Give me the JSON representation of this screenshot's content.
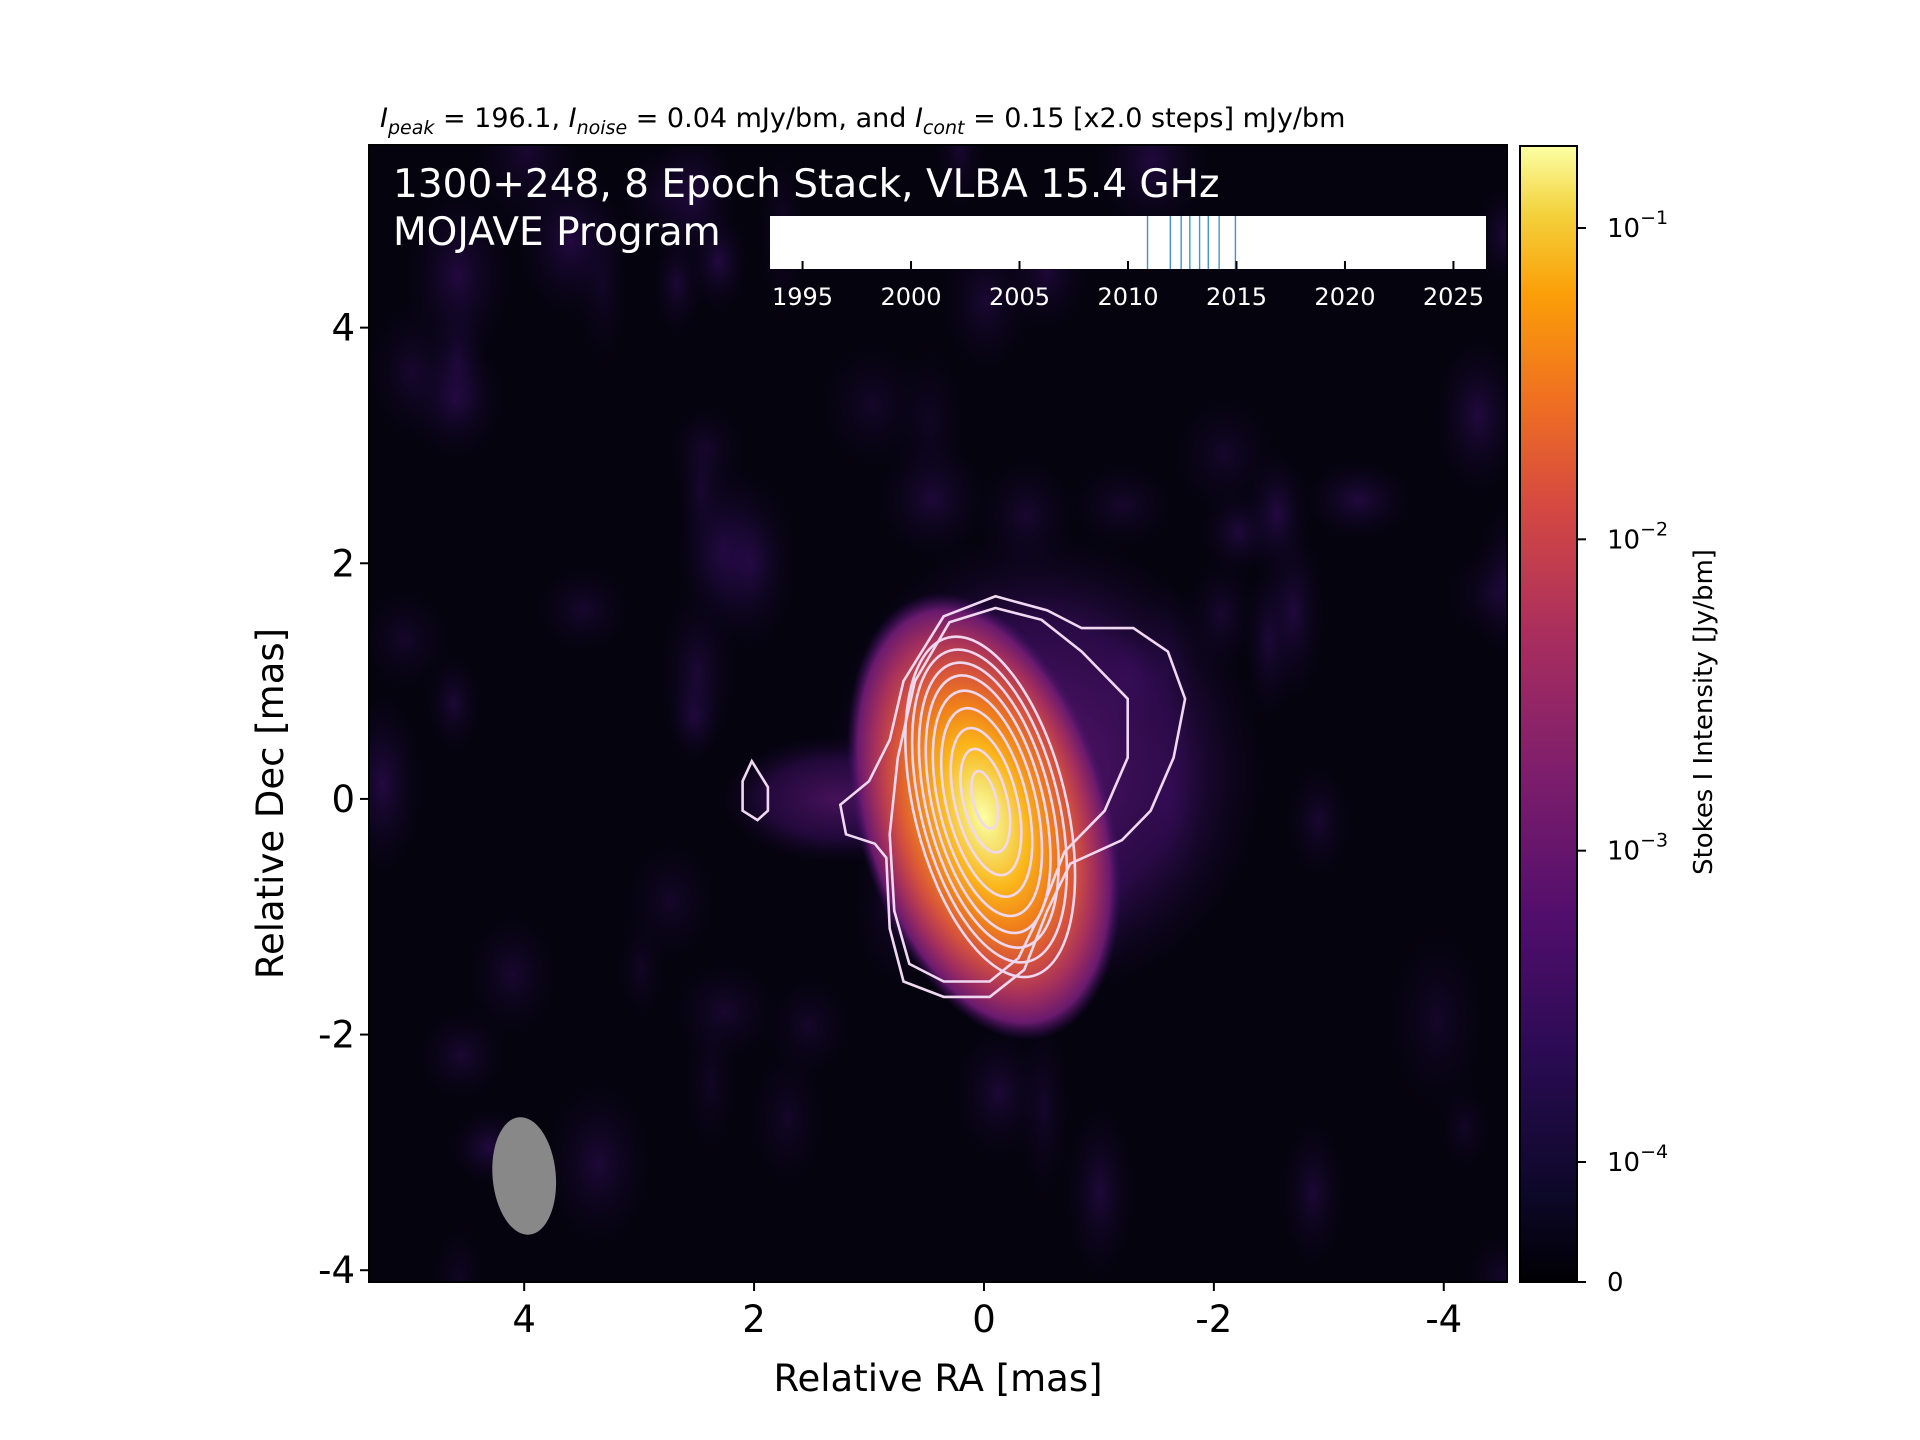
{
  "chart_data": {
    "type": "heatmap",
    "header": {
      "parts": [
        {
          "base": "I",
          "sub": "peak",
          "rest": " = 196.1, "
        },
        {
          "base": "I",
          "sub": "noise",
          "rest": " = 0.04 mJy/bm, and "
        },
        {
          "base": "I",
          "sub": "cont",
          "rest": " = 0.15 [x2.0 steps] mJy/bm"
        }
      ]
    },
    "title": "1300+248, 8 Epoch Stack, VLBA 15.4 GHz",
    "subtitle": "MOJAVE Program",
    "xlabel": "Relative RA [mas]",
    "ylabel": "Relative Dec [mas]",
    "xlim": [
      5.35,
      -4.55
    ],
    "ylim": [
      -4.1,
      5.55
    ],
    "x_ticks": [
      4,
      2,
      0,
      -2,
      -4
    ],
    "x_tick_labels": [
      "4",
      "2",
      "0",
      "-2",
      "-4"
    ],
    "y_ticks": [
      4,
      2,
      0,
      -2,
      -4
    ],
    "y_tick_labels": [
      "4",
      "2",
      "0",
      "-2",
      "-4"
    ],
    "x_reversed": true,
    "colormap": "inferno",
    "colorbar": {
      "label": "Stokes I Intensity [Jy/bm]",
      "ticks": [
        {
          "value": 0.1,
          "base": "10",
          "exp": "−1"
        },
        {
          "value": 0.01,
          "base": "10",
          "exp": "−2"
        },
        {
          "value": 0.001,
          "base": "10",
          "exp": "−3"
        },
        {
          "value": 0.0001,
          "base": "10",
          "exp": "−4"
        },
        {
          "value": 0,
          "base": "0",
          "exp": ""
        }
      ]
    },
    "source": {
      "peak_x": 0.0,
      "peak_y": 0.0,
      "peak_jy": 0.1961
    },
    "contour_color": "#f0d8f0",
    "contour_levels_mjy": [
      0.15,
      0.3,
      0.6,
      1.2,
      2.4,
      4.8,
      9.6,
      19.2,
      38.4,
      76.8,
      153.6
    ],
    "beam": {
      "x": 4.0,
      "y": -3.2,
      "major_mas": 1.0,
      "minor_mas": 0.55,
      "pa_deg": -5,
      "color": "#888888"
    },
    "inset_timeline": {
      "xlim": [
        1993.5,
        2026.5
      ],
      "ticks": [
        1995,
        2000,
        2005,
        2010,
        2015,
        2020,
        2025
      ],
      "tick_labels": [
        "1995",
        "2000",
        "2005",
        "2010",
        "2015",
        "2020",
        "2025"
      ],
      "epochs": [
        2010.9,
        2011.95,
        2012.45,
        2012.85,
        2013.3,
        2013.7,
        2014.2,
        2014.95
      ],
      "epoch_color": "#4a90c8"
    }
  }
}
